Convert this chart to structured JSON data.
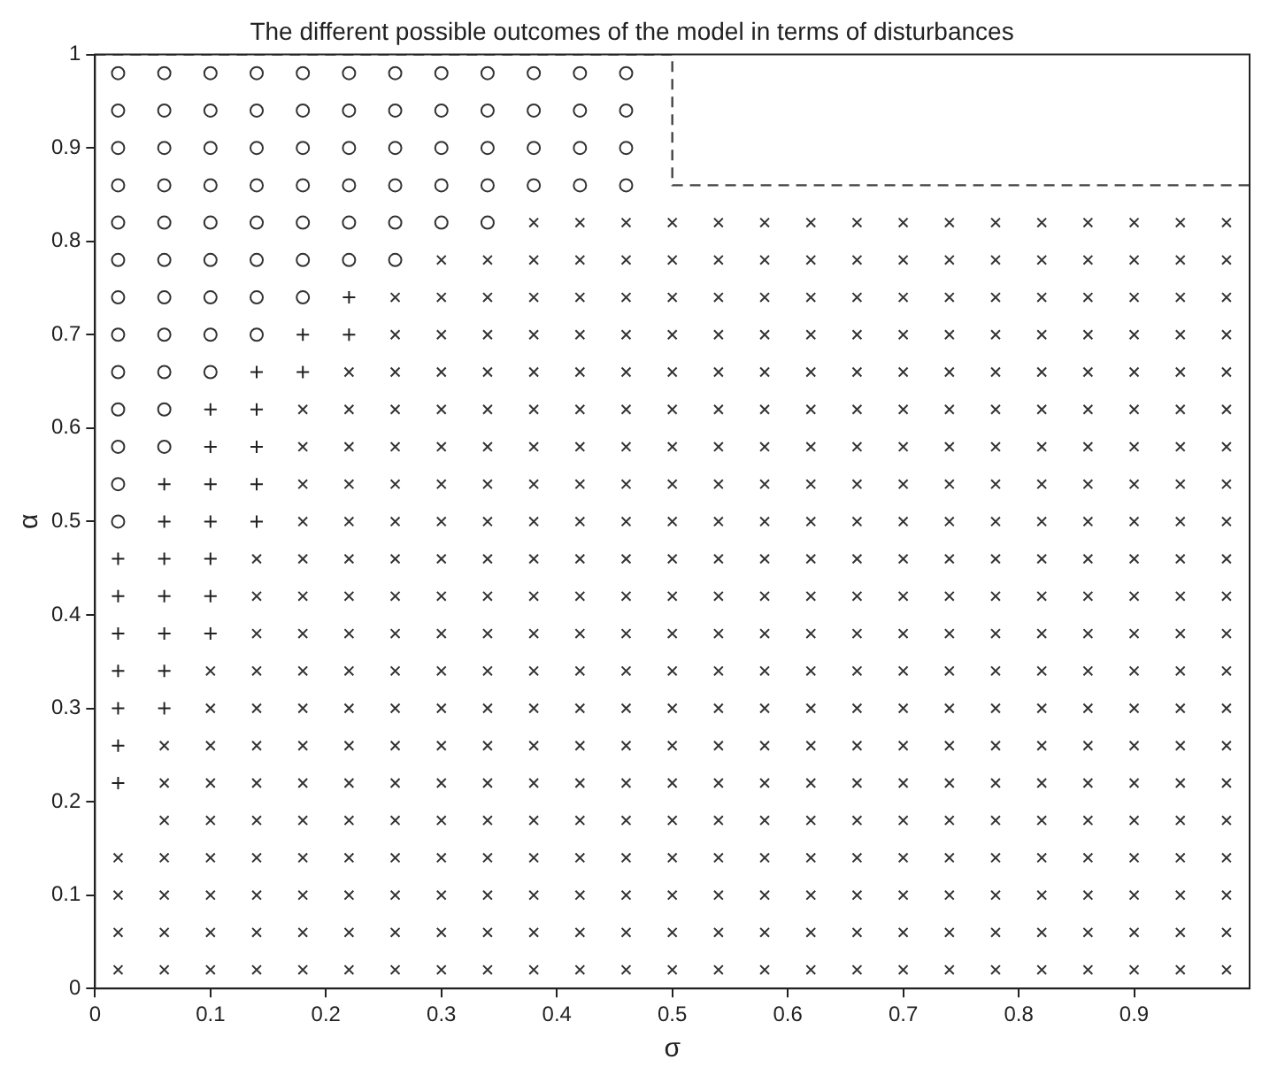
{
  "chart_data": {
    "type": "scatter",
    "title": "The different possible outcomes of the model in terms of disturbances",
    "xlabel": "σ",
    "ylabel": "α",
    "xlim": [
      0,
      1
    ],
    "ylim": [
      0,
      1
    ],
    "xticks": [
      0,
      0.1,
      0.2,
      0.3,
      0.4,
      0.5,
      0.6,
      0.7,
      0.8,
      0.9
    ],
    "yticks": [
      0,
      0.1,
      0.2,
      0.3,
      0.4,
      0.5,
      0.6,
      0.7,
      0.8,
      0.9,
      1
    ],
    "grid": false,
    "legend": false,
    "series": [
      {
        "type": "scatter",
        "marker": "circle",
        "color": "#333333",
        "x": [
          0.02,
          0.02,
          0.02,
          0.02,
          0.02,
          0.02,
          0.02,
          0.02,
          0.02,
          0.02,
          0.02,
          0.02,
          0.02,
          0.06,
          0.06,
          0.06,
          0.06,
          0.06,
          0.06,
          0.06,
          0.06,
          0.06,
          0.06,
          0.06,
          0.1,
          0.1,
          0.1,
          0.1,
          0.1,
          0.1,
          0.1,
          0.1,
          0.1,
          0.14,
          0.14,
          0.14,
          0.14,
          0.14,
          0.14,
          0.14,
          0.14,
          0.18,
          0.18,
          0.18,
          0.18,
          0.18,
          0.18,
          0.18,
          0.22,
          0.22,
          0.22,
          0.22,
          0.22,
          0.22,
          0.26,
          0.26,
          0.26,
          0.26,
          0.26,
          0.26,
          0.3,
          0.3,
          0.3,
          0.3,
          0.3,
          0.34,
          0.34,
          0.34,
          0.34,
          0.34,
          0.38,
          0.38,
          0.38,
          0.38,
          0.42,
          0.42,
          0.42,
          0.42,
          0.46,
          0.46,
          0.46,
          0.46
        ],
        "values": [
          0.5,
          0.54,
          0.58,
          0.62,
          0.66,
          0.7,
          0.74,
          0.78,
          0.82,
          0.86,
          0.9,
          0.94,
          0.98,
          0.58,
          0.62,
          0.66,
          0.7,
          0.74,
          0.78,
          0.82,
          0.86,
          0.9,
          0.94,
          0.98,
          0.66,
          0.7,
          0.74,
          0.78,
          0.82,
          0.86,
          0.9,
          0.94,
          0.98,
          0.7,
          0.74,
          0.78,
          0.82,
          0.86,
          0.9,
          0.94,
          0.98,
          0.74,
          0.78,
          0.82,
          0.86,
          0.9,
          0.94,
          0.98,
          0.78,
          0.82,
          0.86,
          0.9,
          0.94,
          0.98,
          0.78,
          0.82,
          0.86,
          0.9,
          0.94,
          0.98,
          0.82,
          0.86,
          0.9,
          0.94,
          0.98,
          0.82,
          0.86,
          0.9,
          0.94,
          0.98,
          0.86,
          0.9,
          0.94,
          0.98,
          0.86,
          0.9,
          0.94,
          0.98,
          0.86,
          0.9,
          0.94,
          0.98
        ]
      },
      {
        "type": "scatter",
        "marker": "plus",
        "color": "#222222",
        "x": [
          0.02,
          0.02,
          0.02,
          0.02,
          0.02,
          0.02,
          0.02,
          0.06,
          0.06,
          0.06,
          0.06,
          0.06,
          0.06,
          0.06,
          0.1,
          0.1,
          0.1,
          0.1,
          0.1,
          0.1,
          0.1,
          0.14,
          0.14,
          0.14,
          0.14,
          0.14,
          0.18,
          0.18,
          0.22,
          0.22
        ],
        "values": [
          0.22,
          0.26,
          0.3,
          0.34,
          0.38,
          0.42,
          0.46,
          0.3,
          0.34,
          0.38,
          0.42,
          0.46,
          0.5,
          0.54,
          0.38,
          0.42,
          0.46,
          0.5,
          0.54,
          0.58,
          0.62,
          0.5,
          0.54,
          0.58,
          0.62,
          0.66,
          0.66,
          0.7,
          0.7,
          0.74
        ]
      },
      {
        "type": "scatter",
        "marker": "cross",
        "color": "#333333",
        "x": [
          0.02,
          0.02,
          0.02,
          0.02,
          0.06,
          0.06,
          0.06,
          0.06,
          0.06,
          0.06,
          0.06,
          0.1,
          0.1,
          0.1,
          0.1,
          0.1,
          0.1,
          0.1,
          0.1,
          0.1,
          0.14,
          0.14,
          0.14,
          0.14,
          0.14,
          0.14,
          0.14,
          0.14,
          0.14,
          0.14,
          0.14,
          0.14,
          0.18,
          0.18,
          0.18,
          0.18,
          0.18,
          0.18,
          0.18,
          0.18,
          0.18,
          0.18,
          0.18,
          0.18,
          0.18,
          0.18,
          0.18,
          0.18,
          0.22,
          0.22,
          0.22,
          0.22,
          0.22,
          0.22,
          0.22,
          0.22,
          0.22,
          0.22,
          0.22,
          0.22,
          0.22,
          0.22,
          0.22,
          0.22,
          0.22,
          0.26,
          0.26,
          0.26,
          0.26,
          0.26,
          0.26,
          0.26,
          0.26,
          0.26,
          0.26,
          0.26,
          0.26,
          0.26,
          0.26,
          0.26,
          0.26,
          0.26,
          0.26,
          0.26,
          0.3,
          0.3,
          0.3,
          0.3,
          0.3,
          0.3,
          0.3,
          0.3,
          0.3,
          0.3,
          0.3,
          0.3,
          0.3,
          0.3,
          0.3,
          0.3,
          0.3,
          0.3,
          0.3,
          0.3,
          0.34,
          0.34,
          0.34,
          0.34,
          0.34,
          0.34,
          0.34,
          0.34,
          0.34,
          0.34,
          0.34,
          0.34,
          0.34,
          0.34,
          0.34,
          0.34,
          0.34,
          0.34,
          0.34,
          0.34,
          0.38,
          0.38,
          0.38,
          0.38,
          0.38,
          0.38,
          0.38,
          0.38,
          0.38,
          0.38,
          0.38,
          0.38,
          0.38,
          0.38,
          0.38,
          0.38,
          0.38,
          0.38,
          0.38,
          0.38,
          0.38,
          0.42,
          0.42,
          0.42,
          0.42,
          0.42,
          0.42,
          0.42,
          0.42,
          0.42,
          0.42,
          0.42,
          0.42,
          0.42,
          0.42,
          0.42,
          0.42,
          0.42,
          0.42,
          0.42,
          0.42,
          0.42,
          0.46,
          0.46,
          0.46,
          0.46,
          0.46,
          0.46,
          0.46,
          0.46,
          0.46,
          0.46,
          0.46,
          0.46,
          0.46,
          0.46,
          0.46,
          0.46,
          0.46,
          0.46,
          0.46,
          0.46,
          0.46,
          0.5,
          0.5,
          0.5,
          0.5,
          0.5,
          0.5,
          0.5,
          0.5,
          0.5,
          0.5,
          0.5,
          0.5,
          0.5,
          0.5,
          0.5,
          0.5,
          0.5,
          0.5,
          0.5,
          0.5,
          0.5,
          0.54,
          0.54,
          0.54,
          0.54,
          0.54,
          0.54,
          0.54,
          0.54,
          0.54,
          0.54,
          0.54,
          0.54,
          0.54,
          0.54,
          0.54,
          0.54,
          0.54,
          0.54,
          0.54,
          0.54,
          0.54,
          0.58,
          0.58,
          0.58,
          0.58,
          0.58,
          0.58,
          0.58,
          0.58,
          0.58,
          0.58,
          0.58,
          0.58,
          0.58,
          0.58,
          0.58,
          0.58,
          0.58,
          0.58,
          0.58,
          0.58,
          0.58,
          0.62,
          0.62,
          0.62,
          0.62,
          0.62,
          0.62,
          0.62,
          0.62,
          0.62,
          0.62,
          0.62,
          0.62,
          0.62,
          0.62,
          0.62,
          0.62,
          0.62,
          0.62,
          0.62,
          0.62,
          0.62,
          0.66,
          0.66,
          0.66,
          0.66,
          0.66,
          0.66,
          0.66,
          0.66,
          0.66,
          0.66,
          0.66,
          0.66,
          0.66,
          0.66,
          0.66,
          0.66,
          0.66,
          0.66,
          0.66,
          0.66,
          0.66,
          0.7,
          0.7,
          0.7,
          0.7,
          0.7,
          0.7,
          0.7,
          0.7,
          0.7,
          0.7,
          0.7,
          0.7,
          0.7,
          0.7,
          0.7,
          0.7,
          0.7,
          0.7,
          0.7,
          0.7,
          0.7,
          0.74,
          0.74,
          0.74,
          0.74,
          0.74,
          0.74,
          0.74,
          0.74,
          0.74,
          0.74,
          0.74,
          0.74,
          0.74,
          0.74,
          0.74,
          0.74,
          0.74,
          0.74,
          0.74,
          0.74,
          0.74,
          0.78,
          0.78,
          0.78,
          0.78,
          0.78,
          0.78,
          0.78,
          0.78,
          0.78,
          0.78,
          0.78,
          0.78,
          0.78,
          0.78,
          0.78,
          0.78,
          0.78,
          0.78,
          0.78,
          0.78,
          0.78,
          0.82,
          0.82,
          0.82,
          0.82,
          0.82,
          0.82,
          0.82,
          0.82,
          0.82,
          0.82,
          0.82,
          0.82,
          0.82,
          0.82,
          0.82,
          0.82,
          0.82,
          0.82,
          0.82,
          0.82,
          0.82,
          0.86,
          0.86,
          0.86,
          0.86,
          0.86,
          0.86,
          0.86,
          0.86,
          0.86,
          0.86,
          0.86,
          0.86,
          0.86,
          0.86,
          0.86,
          0.86,
          0.86,
          0.86,
          0.86,
          0.86,
          0.86,
          0.9,
          0.9,
          0.9,
          0.9,
          0.9,
          0.9,
          0.9,
          0.9,
          0.9,
          0.9,
          0.9,
          0.9,
          0.9,
          0.9,
          0.9,
          0.9,
          0.9,
          0.9,
          0.9,
          0.9,
          0.9,
          0.94,
          0.94,
          0.94,
          0.94,
          0.94,
          0.94,
          0.94,
          0.94,
          0.94,
          0.94,
          0.94,
          0.94,
          0.94,
          0.94,
          0.94,
          0.94,
          0.94,
          0.94,
          0.94,
          0.94,
          0.94,
          0.98,
          0.98,
          0.98,
          0.98,
          0.98,
          0.98,
          0.98,
          0.98,
          0.98,
          0.98,
          0.98,
          0.98,
          0.98,
          0.98,
          0.98,
          0.98,
          0.98,
          0.98,
          0.98,
          0.98,
          0.98
        ],
        "values": [
          0.02,
          0.06,
          0.1,
          0.14,
          0.02,
          0.06,
          0.1,
          0.14,
          0.18,
          0.22,
          0.26,
          0.02,
          0.06,
          0.1,
          0.14,
          0.18,
          0.22,
          0.26,
          0.3,
          0.34,
          0.02,
          0.06,
          0.1,
          0.14,
          0.18,
          0.22,
          0.26,
          0.3,
          0.34,
          0.38,
          0.42,
          0.46,
          0.02,
          0.06,
          0.1,
          0.14,
          0.18,
          0.22,
          0.26,
          0.3,
          0.34,
          0.38,
          0.42,
          0.46,
          0.5,
          0.54,
          0.58,
          0.62,
          0.02,
          0.06,
          0.1,
          0.14,
          0.18,
          0.22,
          0.26,
          0.3,
          0.34,
          0.38,
          0.42,
          0.46,
          0.5,
          0.54,
          0.58,
          0.62,
          0.66,
          0.02,
          0.06,
          0.1,
          0.14,
          0.18,
          0.22,
          0.26,
          0.3,
          0.34,
          0.38,
          0.42,
          0.46,
          0.5,
          0.54,
          0.58,
          0.62,
          0.66,
          0.7,
          0.74,
          0.02,
          0.06,
          0.1,
          0.14,
          0.18,
          0.22,
          0.26,
          0.3,
          0.34,
          0.38,
          0.42,
          0.46,
          0.5,
          0.54,
          0.58,
          0.62,
          0.66,
          0.7,
          0.74,
          0.78,
          0.02,
          0.06,
          0.1,
          0.14,
          0.18,
          0.22,
          0.26,
          0.3,
          0.34,
          0.38,
          0.42,
          0.46,
          0.5,
          0.54,
          0.58,
          0.62,
          0.66,
          0.7,
          0.74,
          0.78,
          0.02,
          0.06,
          0.1,
          0.14,
          0.18,
          0.22,
          0.26,
          0.3,
          0.34,
          0.38,
          0.42,
          0.46,
          0.5,
          0.54,
          0.58,
          0.62,
          0.66,
          0.7,
          0.74,
          0.78,
          0.82,
          0.02,
          0.06,
          0.1,
          0.14,
          0.18,
          0.22,
          0.26,
          0.3,
          0.34,
          0.38,
          0.42,
          0.46,
          0.5,
          0.54,
          0.58,
          0.62,
          0.66,
          0.7,
          0.74,
          0.78,
          0.82,
          0.02,
          0.06,
          0.1,
          0.14,
          0.18,
          0.22,
          0.26,
          0.3,
          0.34,
          0.38,
          0.42,
          0.46,
          0.5,
          0.54,
          0.58,
          0.62,
          0.66,
          0.7,
          0.74,
          0.78,
          0.82,
          0.02,
          0.06,
          0.1,
          0.14,
          0.18,
          0.22,
          0.26,
          0.3,
          0.34,
          0.38,
          0.42,
          0.46,
          0.5,
          0.54,
          0.58,
          0.62,
          0.66,
          0.7,
          0.74,
          0.78,
          0.82,
          0.02,
          0.06,
          0.1,
          0.14,
          0.18,
          0.22,
          0.26,
          0.3,
          0.34,
          0.38,
          0.42,
          0.46,
          0.5,
          0.54,
          0.58,
          0.62,
          0.66,
          0.7,
          0.74,
          0.78,
          0.82,
          0.02,
          0.06,
          0.1,
          0.14,
          0.18,
          0.22,
          0.26,
          0.3,
          0.34,
          0.38,
          0.42,
          0.46,
          0.5,
          0.54,
          0.58,
          0.62,
          0.66,
          0.7,
          0.74,
          0.78,
          0.82,
          0.02,
          0.06,
          0.1,
          0.14,
          0.18,
          0.22,
          0.26,
          0.3,
          0.34,
          0.38,
          0.42,
          0.46,
          0.5,
          0.54,
          0.58,
          0.62,
          0.66,
          0.7,
          0.74,
          0.78,
          0.82,
          0.02,
          0.06,
          0.1,
          0.14,
          0.18,
          0.22,
          0.26,
          0.3,
          0.34,
          0.38,
          0.42,
          0.46,
          0.5,
          0.54,
          0.58,
          0.62,
          0.66,
          0.7,
          0.74,
          0.78,
          0.82,
          0.02,
          0.06,
          0.1,
          0.14,
          0.18,
          0.22,
          0.26,
          0.3,
          0.34,
          0.38,
          0.42,
          0.46,
          0.5,
          0.54,
          0.58,
          0.62,
          0.66,
          0.7,
          0.74,
          0.78,
          0.82,
          0.02,
          0.06,
          0.1,
          0.14,
          0.18,
          0.22,
          0.26,
          0.3,
          0.34,
          0.38,
          0.42,
          0.46,
          0.5,
          0.54,
          0.58,
          0.62,
          0.66,
          0.7,
          0.74,
          0.78,
          0.82,
          0.02,
          0.06,
          0.1,
          0.14,
          0.18,
          0.22,
          0.26,
          0.3,
          0.34,
          0.38,
          0.42,
          0.46,
          0.5,
          0.54,
          0.58,
          0.62,
          0.66,
          0.7,
          0.74,
          0.78,
          0.82,
          0.02,
          0.06,
          0.1,
          0.14,
          0.18,
          0.22,
          0.26,
          0.3,
          0.34,
          0.38,
          0.42,
          0.46,
          0.5,
          0.54,
          0.58,
          0.62,
          0.66,
          0.7,
          0.74,
          0.78,
          0.82,
          0.02,
          0.06,
          0.1,
          0.14,
          0.18,
          0.22,
          0.26,
          0.3,
          0.34,
          0.38,
          0.42,
          0.46,
          0.5,
          0.54,
          0.58,
          0.62,
          0.66,
          0.7,
          0.74,
          0.78,
          0.82,
          0.02,
          0.06,
          0.1,
          0.14,
          0.18,
          0.22,
          0.26,
          0.3,
          0.34,
          0.38,
          0.42,
          0.46,
          0.5,
          0.54,
          0.58,
          0.62,
          0.66,
          0.7,
          0.74,
          0.78,
          0.82,
          0.02,
          0.06,
          0.1,
          0.14,
          0.18,
          0.22,
          0.26,
          0.3,
          0.34,
          0.38,
          0.42,
          0.46,
          0.5,
          0.54,
          0.58,
          0.62,
          0.66,
          0.7,
          0.74,
          0.78,
          0.82,
          0.02,
          0.06,
          0.1,
          0.14,
          0.18,
          0.22,
          0.26,
          0.3,
          0.34,
          0.38,
          0.42,
          0.46,
          0.5,
          0.54,
          0.58,
          0.62,
          0.66,
          0.7,
          0.74,
          0.78,
          0.82
        ]
      },
      {
        "type": "line",
        "marker": "none",
        "line_style": "dashed",
        "color": "#444444",
        "x": [
          0,
          0.5,
          0.5,
          1
        ],
        "values": [
          1,
          1,
          0.86,
          0.86
        ]
      }
    ]
  }
}
